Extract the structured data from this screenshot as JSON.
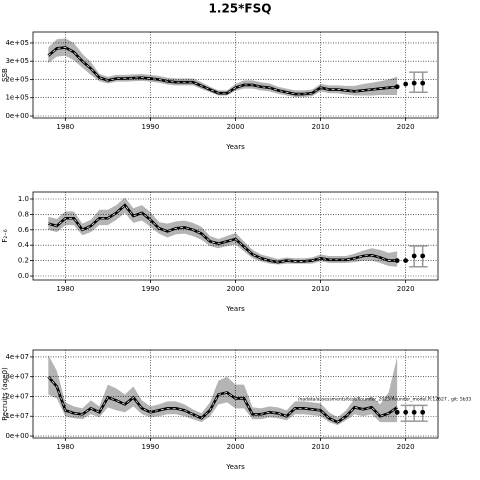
{
  "title": "1.25*FSQ",
  "chart_data": [
    {
      "type": "line",
      "ylabel": "SSB",
      "xlabel": "Years",
      "x": [
        1978,
        1979,
        1980,
        1981,
        1982,
        1983,
        1984,
        1985,
        1986,
        1987,
        1988,
        1989,
        1990,
        1991,
        1992,
        1993,
        1994,
        1995,
        1996,
        1997,
        1998,
        1999,
        2000,
        2001,
        2002,
        2003,
        2004,
        2005,
        2006,
        2007,
        2008,
        2009,
        2010,
        2011,
        2012,
        2013,
        2014,
        2015,
        2016,
        2017,
        2018,
        2019
      ],
      "values": [
        330000,
        370000,
        375000,
        350000,
        300000,
        260000,
        210000,
        195000,
        205000,
        205000,
        208000,
        210000,
        205000,
        200000,
        190000,
        185000,
        185000,
        185000,
        165000,
        145000,
        125000,
        125000,
        155000,
        170000,
        170000,
        160000,
        155000,
        140000,
        130000,
        120000,
        120000,
        125000,
        155000,
        145000,
        145000,
        140000,
        135000,
        140000,
        145000,
        150000,
        155000,
        160000
      ],
      "upper": [
        375000,
        420000,
        425000,
        400000,
        340000,
        295000,
        230000,
        215000,
        225000,
        225000,
        228000,
        230000,
        225000,
        220000,
        210000,
        205000,
        205000,
        205000,
        185000,
        160000,
        140000,
        140000,
        175000,
        195000,
        195000,
        185000,
        178000,
        160000,
        150000,
        140000,
        140000,
        145000,
        175000,
        168000,
        168000,
        165000,
        165000,
        175000,
        182000,
        190000,
        200000,
        215000
      ],
      "lower": [
        290000,
        325000,
        330000,
        305000,
        265000,
        225000,
        190000,
        178000,
        188000,
        188000,
        190000,
        192000,
        188000,
        182000,
        172000,
        168000,
        168000,
        168000,
        148000,
        130000,
        112000,
        112000,
        138000,
        150000,
        150000,
        140000,
        135000,
        122000,
        112000,
        104000,
        104000,
        108000,
        135000,
        125000,
        124000,
        118000,
        112000,
        112000,
        112000,
        115000,
        115000,
        115000
      ],
      "proj_x": [
        2019,
        2020,
        2021,
        2022
      ],
      "proj_values": [
        160000,
        175000,
        180000,
        180000
      ],
      "err_x": [
        2021,
        2022
      ],
      "err_lower": [
        130000,
        130000
      ],
      "err_upper": [
        240000,
        240000
      ],
      "xlim": [
        1976.2,
        2023.8
      ],
      "xticks": [
        1980,
        1990,
        2000,
        2010,
        2020
      ],
      "ylim": [
        -11000,
        460000
      ],
      "yticks": [
        {
          "value": 0,
          "label": "0e+00"
        },
        {
          "value": 100000,
          "label": "1e+05"
        },
        {
          "value": 200000,
          "label": "2e+05"
        },
        {
          "value": 300000,
          "label": "3e+05"
        },
        {
          "value": 400000,
          "label": "4e+05"
        }
      ],
      "grid": true,
      "color": "#000000",
      "band_color": "#b4b4b4"
    },
    {
      "type": "line",
      "ylabel": "F₂₋₆",
      "xlabel": "Years",
      "x": [
        1978,
        1979,
        1980,
        1981,
        1982,
        1983,
        1984,
        1985,
        1986,
        1987,
        1988,
        1989,
        1990,
        1991,
        1992,
        1993,
        1994,
        1995,
        1996,
        1997,
        1998,
        1999,
        2000,
        2001,
        2002,
        2003,
        2004,
        2005,
        2006,
        2007,
        2008,
        2009,
        2010,
        2011,
        2012,
        2013,
        2014,
        2015,
        2016,
        2017,
        2018,
        2019
      ],
      "values": [
        0.68,
        0.65,
        0.75,
        0.75,
        0.6,
        0.65,
        0.75,
        0.75,
        0.82,
        0.92,
        0.78,
        0.82,
        0.73,
        0.62,
        0.58,
        0.62,
        0.63,
        0.6,
        0.55,
        0.45,
        0.42,
        0.45,
        0.48,
        0.38,
        0.28,
        0.23,
        0.2,
        0.18,
        0.2,
        0.19,
        0.19,
        0.2,
        0.23,
        0.21,
        0.21,
        0.21,
        0.23,
        0.26,
        0.27,
        0.24,
        0.2,
        0.2
      ],
      "upper": [
        0.77,
        0.74,
        0.84,
        0.84,
        0.68,
        0.73,
        0.86,
        0.86,
        0.92,
        1.02,
        0.88,
        0.92,
        0.83,
        0.7,
        0.68,
        0.71,
        0.72,
        0.69,
        0.64,
        0.52,
        0.48,
        0.52,
        0.56,
        0.45,
        0.34,
        0.28,
        0.25,
        0.22,
        0.24,
        0.23,
        0.23,
        0.24,
        0.28,
        0.26,
        0.26,
        0.26,
        0.29,
        0.33,
        0.36,
        0.34,
        0.3,
        0.32
      ],
      "lower": [
        0.6,
        0.57,
        0.66,
        0.66,
        0.53,
        0.57,
        0.66,
        0.66,
        0.73,
        0.82,
        0.69,
        0.72,
        0.64,
        0.55,
        0.5,
        0.54,
        0.55,
        0.52,
        0.47,
        0.39,
        0.36,
        0.39,
        0.41,
        0.32,
        0.23,
        0.19,
        0.16,
        0.15,
        0.16,
        0.16,
        0.16,
        0.16,
        0.19,
        0.17,
        0.17,
        0.17,
        0.18,
        0.2,
        0.2,
        0.17,
        0.13,
        0.12
      ],
      "proj_x": [
        2019,
        2020,
        2021,
        2022
      ],
      "proj_values": [
        0.2,
        0.2,
        0.26,
        0.26
      ],
      "err_x": [
        2021,
        2022
      ],
      "err_lower": [
        0.12,
        0.12
      ],
      "err_upper": [
        0.39,
        0.39
      ],
      "xlim": [
        1976.2,
        2023.8
      ],
      "xticks": [
        1980,
        1990,
        2000,
        2010,
        2020
      ],
      "ylim": [
        -0.052,
        1.091
      ],
      "yticks": [
        {
          "value": 0,
          "label": "0.0"
        },
        0.2,
        0.4,
        0.6,
        0.8,
        {
          "value": 1,
          "label": "1.0"
        }
      ],
      "grid": true,
      "color": "#000000",
      "band_color": "#b4b4b4"
    },
    {
      "type": "line",
      "ylabel": "Recruits (age0)",
      "xlabel": "Years",
      "annotation": "/nadata/assessments/test/flounder_2023/flounder_model.R:12627 , git: 5b33",
      "x": [
        1978,
        1979,
        1980,
        1981,
        1982,
        1983,
        1984,
        1985,
        1986,
        1987,
        1988,
        1989,
        1990,
        1991,
        1992,
        1993,
        1994,
        1995,
        1996,
        1997,
        1998,
        1999,
        2000,
        2001,
        2002,
        2003,
        2004,
        2005,
        2006,
        2007,
        2008,
        2009,
        2010,
        2011,
        2012,
        2013,
        2014,
        2015,
        2016,
        2017,
        2018,
        2019
      ],
      "values": [
        30000000.0,
        25000000.0,
        13000000.0,
        11500000.0,
        11000000.0,
        14000000.0,
        12000000.0,
        19500000.0,
        18000000.0,
        16000000.0,
        19500000.0,
        14000000.0,
        12000000.0,
        13000000.0,
        14000000.0,
        14000000.0,
        13000000.0,
        11000000.0,
        9000000.0,
        13000000.0,
        21000000.0,
        22000000.0,
        19000000.0,
        19000000.0,
        11000000.0,
        11000000.0,
        12000000.0,
        11500000.0,
        10000000.0,
        14000000.0,
        14000000.0,
        13500000.0,
        13000000.0,
        9000000.0,
        7000000.0,
        10000000.0,
        14500000.0,
        13500000.0,
        14500000.0,
        10000000.0,
        11500000.0,
        14500000.0
      ],
      "upper": [
        41000000.0,
        33000000.0,
        17000000.0,
        15000000.0,
        14000000.0,
        18000000.0,
        15000000.0,
        26000000.0,
        24000000.0,
        21000000.0,
        25000000.0,
        18000000.0,
        15000000.0,
        16000000.0,
        17500000.0,
        17500000.0,
        16000000.0,
        13500000.0,
        11500000.0,
        17000000.0,
        28000000.0,
        30000000.0,
        26000000.0,
        26000000.0,
        14500000.0,
        14000000.0,
        15000000.0,
        14500000.0,
        13000000.0,
        17500000.0,
        17500000.0,
        17000000.0,
        16500000.0,
        12000000.0,
        9500000.0,
        13000000.0,
        19000000.0,
        18000000.0,
        20000000.0,
        16000000.0,
        22000000.0,
        40000000.0
      ],
      "lower": [
        21000000.0,
        19000000.0,
        10000000.0,
        9000000.0,
        8500000.0,
        11000000.0,
        9500000.0,
        14500000.0,
        13000000.0,
        12000000.0,
        15000000.0,
        11000000.0,
        9500000.0,
        10000000.0,
        11000000.0,
        11000000.0,
        10000000.0,
        8500000.0,
        7000000.0,
        10000000.0,
        16000000.0,
        17000000.0,
        14000000.0,
        14000000.0,
        8500000.0,
        8500000.0,
        9500000.0,
        9000000.0,
        8000000.0,
        11000000.0,
        11000000.0,
        10500000.0,
        10000000.0,
        7000000.0,
        5500000.0,
        8000000.0,
        11000000.0,
        10000000.0,
        11000000.0,
        7000000.0,
        7000000.0,
        7000000.0
      ],
      "proj_x": [
        2019,
        2020,
        2021,
        2022
      ],
      "proj_values": [
        12000000.0,
        12000000.0,
        12000000.0,
        12000000.0
      ],
      "err_x": [
        2020,
        2021,
        2022
      ],
      "err_lower": [
        7500000.0,
        7500000.0,
        7500000.0
      ],
      "err_upper": [
        15500000.0,
        15500000.0,
        15500000.0
      ],
      "xlim": [
        1976.2,
        2023.8
      ],
      "xticks": [
        1980,
        1990,
        2000,
        2010,
        2020
      ],
      "ylim": [
        -1000000.0,
        43500000.0
      ],
      "yticks": [
        {
          "value": 0,
          "label": "0e+00"
        },
        {
          "value": 10000000.0,
          "label": "1e+07"
        },
        {
          "value": 20000000.0,
          "label": "2e+07"
        },
        {
          "value": 30000000.0,
          "label": "3e+07"
        },
        {
          "value": 40000000.0,
          "label": "4e+07"
        }
      ],
      "grid": true,
      "color": "#000000",
      "band_color": "#b4b4b4"
    }
  ]
}
